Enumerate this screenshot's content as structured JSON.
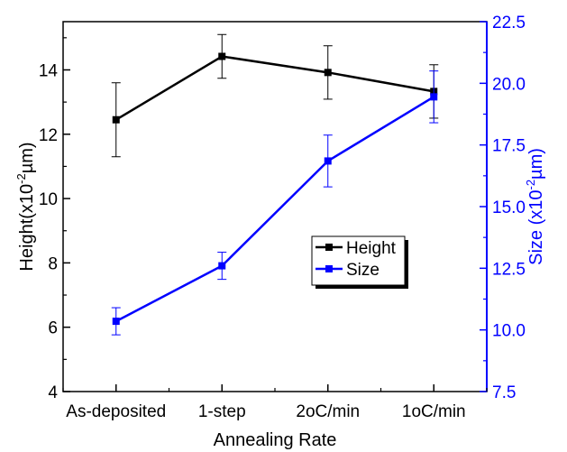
{
  "chart_data": {
    "type": "line",
    "categories": [
      "As-deposited",
      "1-step",
      "2oC/min",
      "1oC/min"
    ],
    "xlabel": "Annealing Rate",
    "y_left": {
      "label_main": "Height(x10",
      "label_sup": "-2",
      "label_end": "µm)",
      "ylim": [
        4,
        15.5
      ],
      "ticks": [
        4,
        6,
        8,
        10,
        12,
        14
      ],
      "tick_labels": [
        "4",
        "6",
        "8",
        "10",
        "12",
        "14"
      ],
      "color": "#000000"
    },
    "y_right": {
      "label_main": "Size (x10",
      "label_sup": "-2",
      "label_end": "µm)",
      "ylim": [
        7.5,
        22.5
      ],
      "ticks": [
        7.5,
        10.0,
        12.5,
        15.0,
        17.5,
        20.0,
        22.5
      ],
      "tick_labels": [
        "7.5",
        "10.0",
        "12.5",
        "15.0",
        "17.5",
        "20.0",
        "22.5"
      ],
      "color": "#0000ff"
    },
    "series": [
      {
        "name": "Height",
        "axis": "left",
        "color": "#000000",
        "values": [
          12.45,
          14.42,
          13.92,
          13.33
        ],
        "errors": [
          1.15,
          0.68,
          0.83,
          0.83
        ]
      },
      {
        "name": "Size",
        "axis": "right",
        "color": "#0000ff",
        "values": [
          10.35,
          12.6,
          16.85,
          19.45
        ],
        "errors": [
          0.55,
          0.55,
          1.05,
          1.05
        ]
      }
    ],
    "legend": {
      "placement": "center-right",
      "shadow": true
    },
    "grid": false
  }
}
